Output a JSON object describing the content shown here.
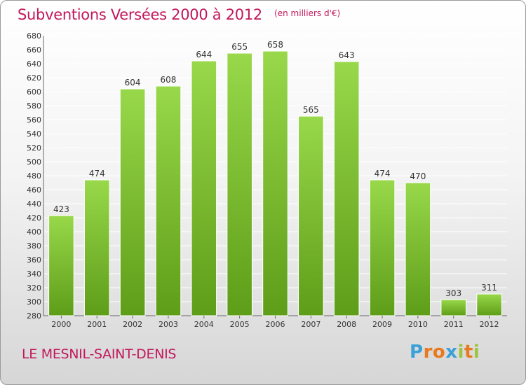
{
  "header": {
    "title": "Subventions Versées 2000 à 2012",
    "subtitle": "(en milliers d'€)"
  },
  "footer": {
    "commune": "LE MESNIL-SAINT-DENIS",
    "logo": "Proxiti",
    "logo_colors": [
      "#3aa0d8",
      "#e8791e",
      "#e8791e",
      "#3aa0d8",
      "#9bc53d",
      "#e8791e",
      "#9bc53d"
    ]
  },
  "colors": {
    "title": "#c2185b",
    "bar_top": "#98d84a",
    "bar_bottom": "#5e9d18",
    "grid": "#ffffff",
    "label": "#333333"
  },
  "chart_data": {
    "type": "bar",
    "categories": [
      "2000",
      "2001",
      "2002",
      "2003",
      "2004",
      "2005",
      "2006",
      "2007",
      "2008",
      "2009",
      "2010",
      "2011",
      "2012"
    ],
    "values": [
      423,
      474,
      604,
      608,
      644,
      655,
      658,
      565,
      643,
      474,
      470,
      303,
      311
    ],
    "data_labels": [
      "423",
      "474",
      "604",
      "608",
      "644",
      "655",
      "658",
      "565",
      "643",
      "474",
      "470",
      "303",
      "311"
    ],
    "ylim": [
      280,
      680
    ],
    "yticks": [
      "280",
      "300",
      "320",
      "340",
      "360",
      "380",
      "400",
      "420",
      "440",
      "460",
      "480",
      "500",
      "520",
      "540",
      "560",
      "580",
      "600",
      "620",
      "640",
      "660",
      "680"
    ],
    "grid": true,
    "legend": "none"
  }
}
